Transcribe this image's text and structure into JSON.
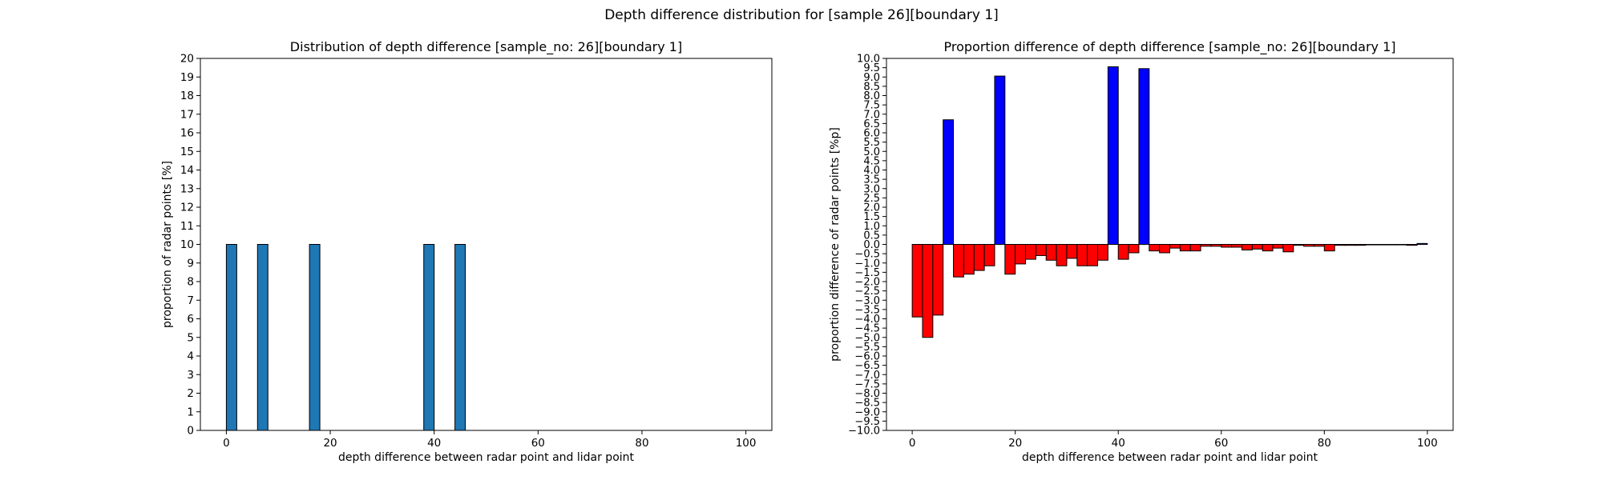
{
  "suptitle": "Depth difference distribution for [sample 26][boundary 1]",
  "chart_data": [
    {
      "type": "bar",
      "title": "Distribution of depth difference [sample_no: 26][boundary 1]",
      "xlabel": "depth difference between radar point and lidar point",
      "ylabel": "proportion of radar points [%]",
      "xlim": [
        -5,
        105
      ],
      "ylim": [
        0,
        20
      ],
      "xticks": [
        0,
        20,
        40,
        60,
        80,
        100
      ],
      "yticks": [
        0,
        1,
        2,
        3,
        4,
        5,
        6,
        7,
        8,
        9,
        10,
        11,
        12,
        13,
        14,
        15,
        16,
        17,
        18,
        19,
        20
      ],
      "bar_width": 2,
      "bar_color": "#1f77b4",
      "edge_color": "#000000",
      "x": [
        1,
        7,
        17,
        39,
        45
      ],
      "values": [
        10,
        10,
        10,
        10,
        10
      ]
    },
    {
      "type": "bar",
      "title": "Proportion difference of depth difference [sample_no: 26][boundary 1]",
      "xlabel": "depth difference between radar point and lidar point",
      "ylabel": "proportion difference of radar points [%p]",
      "xlim": [
        -5,
        105
      ],
      "ylim": [
        -10,
        10
      ],
      "xticks": [
        0,
        20,
        40,
        60,
        80,
        100
      ],
      "ytick_step": 0.5,
      "bar_width": 2,
      "positive_color": "#0000ff",
      "negative_color": "#ff0000",
      "edge_color": "#000000",
      "x": [
        1,
        3,
        5,
        7,
        9,
        11,
        13,
        15,
        17,
        19,
        21,
        23,
        25,
        27,
        29,
        31,
        33,
        35,
        37,
        39,
        41,
        43,
        45,
        47,
        49,
        51,
        53,
        55,
        57,
        59,
        61,
        63,
        65,
        67,
        69,
        71,
        73,
        75,
        77,
        79,
        81,
        83,
        85,
        87,
        89,
        91,
        93,
        95,
        97,
        99
      ],
      "values": [
        -3.9,
        -5.0,
        -3.8,
        6.7,
        -1.75,
        -1.6,
        -1.4,
        -1.15,
        9.05,
        -1.6,
        -1.05,
        -0.8,
        -0.6,
        -0.85,
        -1.15,
        -0.75,
        -1.15,
        -1.15,
        -0.85,
        9.55,
        -0.8,
        -0.45,
        9.45,
        -0.35,
        -0.45,
        -0.2,
        -0.35,
        -0.35,
        -0.1,
        -0.1,
        -0.15,
        -0.15,
        -0.3,
        -0.25,
        -0.35,
        -0.2,
        -0.4,
        -0.05,
        -0.1,
        -0.1,
        -0.35,
        -0.05,
        -0.05,
        -0.05,
        0.0,
        0.0,
        0.0,
        0.0,
        -0.05,
        0.05
      ]
    }
  ]
}
